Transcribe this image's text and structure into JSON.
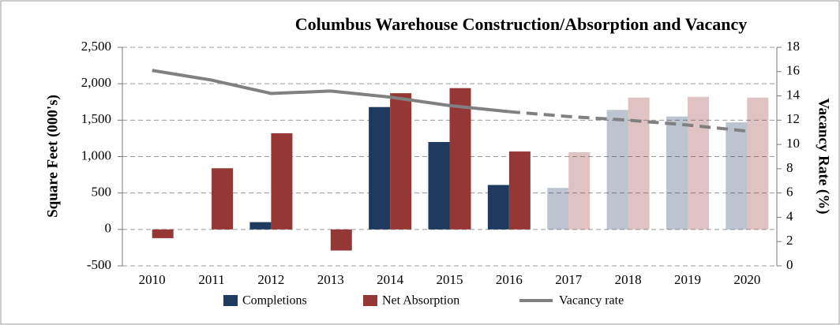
{
  "chart_data": {
    "type": "bar_line",
    "title": "Columbus Warehouse Construction/Absorption and Vacancy",
    "y_label": "Square Feet (000's)",
    "y2_label": "Vacancy Rate (%)",
    "categories": [
      "2010",
      "2011",
      "2012",
      "2013",
      "2014",
      "2015",
      "2016",
      "2017",
      "2018",
      "2019",
      "2020"
    ],
    "forecast_from": "2017",
    "series": [
      {
        "name": "Completions",
        "type": "bar",
        "color": "#1f3a5f",
        "values": [
          0,
          0,
          100,
          0,
          1680,
          1200,
          610,
          570,
          1640,
          1550,
          1470
        ]
      },
      {
        "name": "Net Absorption",
        "type": "bar",
        "color": "#953735",
        "values": [
          -120,
          840,
          1320,
          -290,
          1870,
          1940,
          1070,
          1060,
          1810,
          1820,
          1810
        ]
      },
      {
        "name": "Vacancy rate",
        "type": "line",
        "axis": "y2",
        "color": "#808080",
        "values": [
          16.1,
          15.3,
          14.2,
          14.4,
          13.9,
          13.2,
          12.7,
          12.3,
          12.0,
          11.6,
          11.1
        ]
      }
    ],
    "ylim": [
      -500,
      2500
    ],
    "yticks": [
      -500,
      0,
      500,
      {
        "value": 1000,
        "label": "1,000"
      },
      {
        "value": 1500,
        "label": "1,500"
      },
      {
        "value": 2000,
        "label": "2,000"
      },
      {
        "value": 2500,
        "label": "2,500"
      }
    ],
    "y2lim": [
      0,
      18
    ],
    "y2ticks": [
      0,
      2,
      4,
      6,
      8,
      10,
      12,
      14,
      16,
      18
    ],
    "grid": true,
    "legend": "bottom"
  }
}
